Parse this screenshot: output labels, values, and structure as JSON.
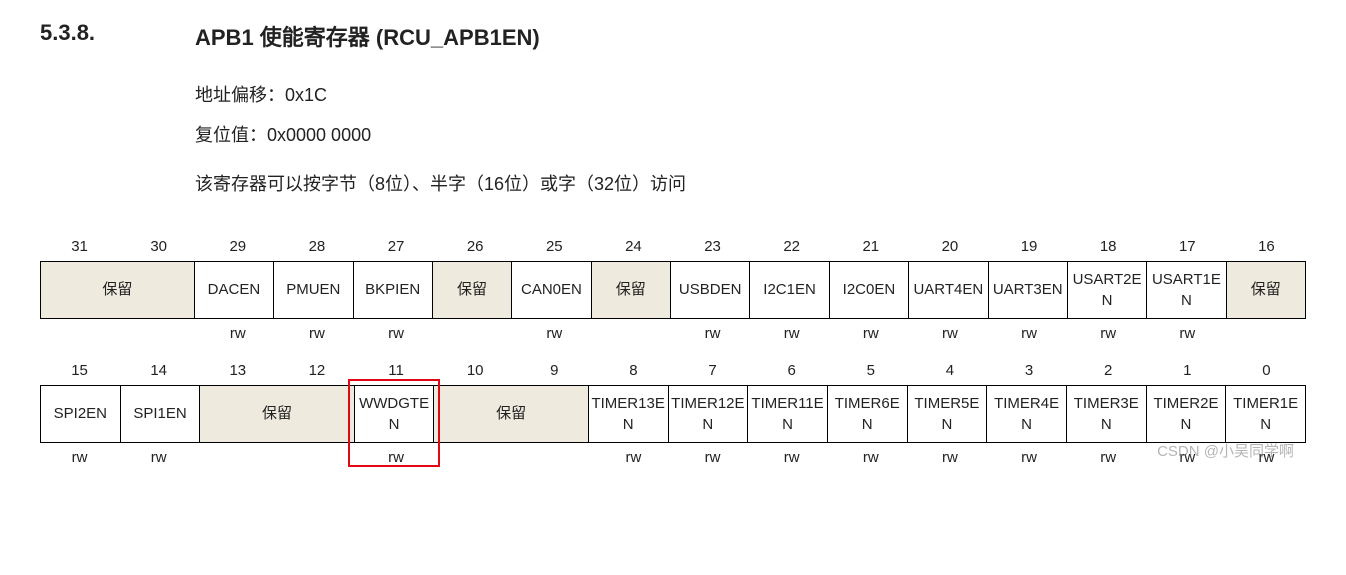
{
  "header": {
    "section_num": "5.3.8.",
    "title": "APB1 使能寄存器  (RCU_APB1EN)"
  },
  "desc": {
    "offset_label": "地址偏移：",
    "offset_val": "0x1C",
    "reset_label": "复位值：",
    "reset_val": "0x0000 0000",
    "access": "该寄存器可以按字节（8位）、半字（16位）或字（32位）访问"
  },
  "row_high": {
    "bits": [
      "31",
      "30",
      "29",
      "28",
      "27",
      "26",
      "25",
      "24",
      "23",
      "22",
      "21",
      "20",
      "19",
      "18",
      "17",
      "16"
    ],
    "cells": [
      {
        "label": "保留",
        "span": 2,
        "reserved": true,
        "rw": ""
      },
      {
        "label": "DACEN",
        "span": 1,
        "reserved": false,
        "rw": "rw"
      },
      {
        "label": "PMUEN",
        "span": 1,
        "reserved": false,
        "rw": "rw"
      },
      {
        "label": "BKPIEN",
        "span": 1,
        "reserved": false,
        "rw": "rw"
      },
      {
        "label": "保留",
        "span": 1,
        "reserved": true,
        "rw": ""
      },
      {
        "label": "CAN0EN",
        "span": 1,
        "reserved": false,
        "rw": "rw"
      },
      {
        "label": "保留",
        "span": 1,
        "reserved": true,
        "rw": ""
      },
      {
        "label": "USBDEN",
        "span": 1,
        "reserved": false,
        "rw": "rw"
      },
      {
        "label": "I2C1EN",
        "span": 1,
        "reserved": false,
        "rw": "rw"
      },
      {
        "label": "I2C0EN",
        "span": 1,
        "reserved": false,
        "rw": "rw"
      },
      {
        "label": "UART4EN",
        "span": 1,
        "reserved": false,
        "rw": "rw"
      },
      {
        "label": "UART3EN",
        "span": 1,
        "reserved": false,
        "rw": "rw"
      },
      {
        "label": "USART2EN",
        "span": 1,
        "reserved": false,
        "rw": "rw"
      },
      {
        "label": "USART1EN",
        "span": 1,
        "reserved": false,
        "rw": "rw"
      },
      {
        "label": "保留",
        "span": 1,
        "reserved": true,
        "rw": ""
      }
    ]
  },
  "row_low": {
    "bits": [
      "15",
      "14",
      "13",
      "12",
      "11",
      "10",
      "9",
      "8",
      "7",
      "6",
      "5",
      "4",
      "3",
      "2",
      "1",
      "0"
    ],
    "cells": [
      {
        "label": "SPI2EN",
        "span": 1,
        "reserved": false,
        "rw": "rw"
      },
      {
        "label": "SPI1EN",
        "span": 1,
        "reserved": false,
        "rw": "rw"
      },
      {
        "label": "保留",
        "span": 2,
        "reserved": true,
        "rw": ""
      },
      {
        "label": "WWDGTEN",
        "span": 1,
        "reserved": false,
        "rw": "rw",
        "hl": true
      },
      {
        "label": "保留",
        "span": 2,
        "reserved": true,
        "rw": ""
      },
      {
        "label": "TIMER13EN",
        "span": 1,
        "reserved": false,
        "rw": "rw"
      },
      {
        "label": "TIMER12EN",
        "span": 1,
        "reserved": false,
        "rw": "rw"
      },
      {
        "label": "TIMER11EN",
        "span": 1,
        "reserved": false,
        "rw": "rw"
      },
      {
        "label": "TIMER6EN",
        "span": 1,
        "reserved": false,
        "rw": "rw"
      },
      {
        "label": "TIMER5EN",
        "span": 1,
        "reserved": false,
        "rw": "rw"
      },
      {
        "label": "TIMER4EN",
        "span": 1,
        "reserved": false,
        "rw": "rw"
      },
      {
        "label": "TIMER3EN",
        "span": 1,
        "reserved": false,
        "rw": "rw"
      },
      {
        "label": "TIMER2EN",
        "span": 1,
        "reserved": false,
        "rw": "rw"
      },
      {
        "label": "TIMER1EN",
        "span": 1,
        "reserved": false,
        "rw": "rw"
      }
    ]
  },
  "watermark": "CSDN @小吴同学啊",
  "colors": {
    "reserved_bg": "#eeeadd",
    "hl_border": "#e30613"
  }
}
